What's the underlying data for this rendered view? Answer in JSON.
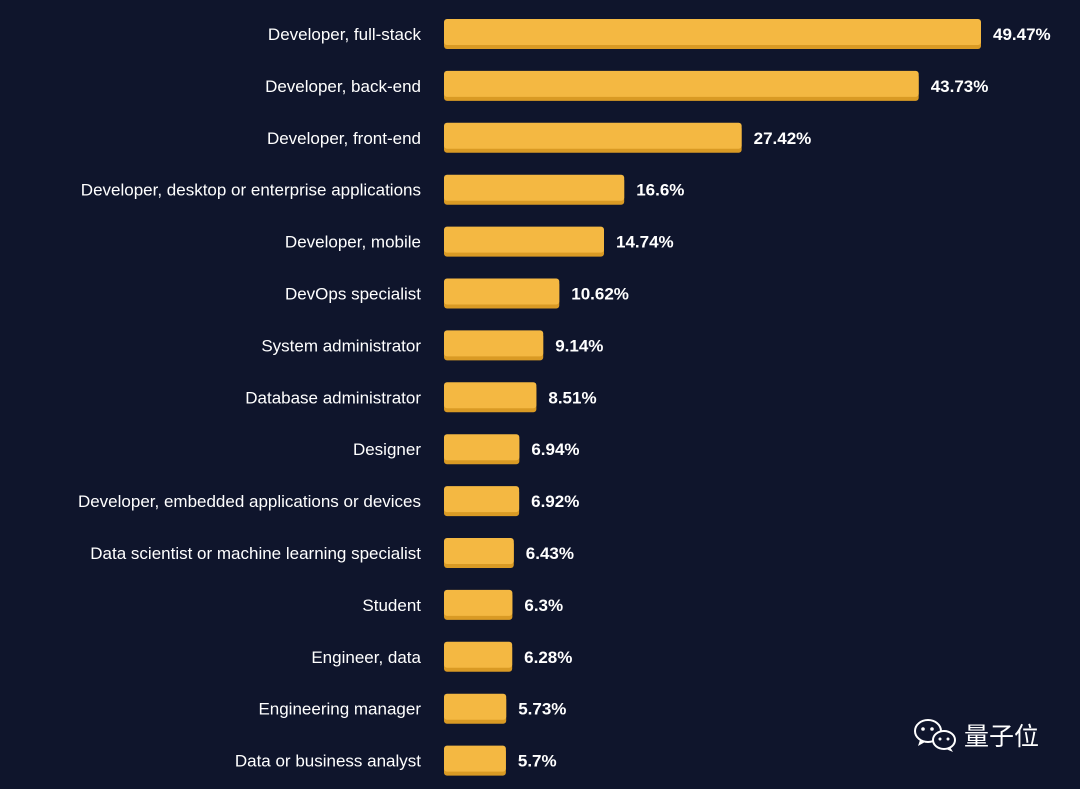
{
  "colors": {
    "background": "#0f152c",
    "bar": "#f4b842",
    "bar_shadow": "#d99a24",
    "text": "#ffffff"
  },
  "chart_data": {
    "type": "bar",
    "orientation": "horizontal",
    "title": "",
    "xlabel": "",
    "ylabel": "",
    "xlim": [
      0,
      49.47
    ],
    "value_suffix": "%",
    "grid": false,
    "categories": [
      "Developer, full-stack",
      "Developer, back-end",
      "Developer, front-end",
      "Developer, desktop or enterprise applications",
      "Developer, mobile",
      "DevOps specialist",
      "System administrator",
      "Database administrator",
      "Designer",
      "Developer, embedded applications or devices",
      "Data scientist or machine learning specialist",
      "Student",
      "Engineer, data",
      "Engineering manager",
      "Data or business analyst"
    ],
    "values": [
      49.47,
      43.73,
      27.42,
      16.6,
      14.74,
      10.62,
      9.14,
      8.51,
      6.94,
      6.92,
      6.43,
      6.3,
      6.28,
      5.73,
      5.7
    ],
    "value_labels": [
      "49.47%",
      "43.73%",
      "27.42%",
      "16.6%",
      "14.74%",
      "10.62%",
      "9.14%",
      "8.51%",
      "6.94%",
      "6.92%",
      "6.43%",
      "6.3%",
      "6.28%",
      "5.73%",
      "5.7%"
    ]
  },
  "watermark": {
    "icon": "wechat-icon",
    "text": "量子位"
  }
}
